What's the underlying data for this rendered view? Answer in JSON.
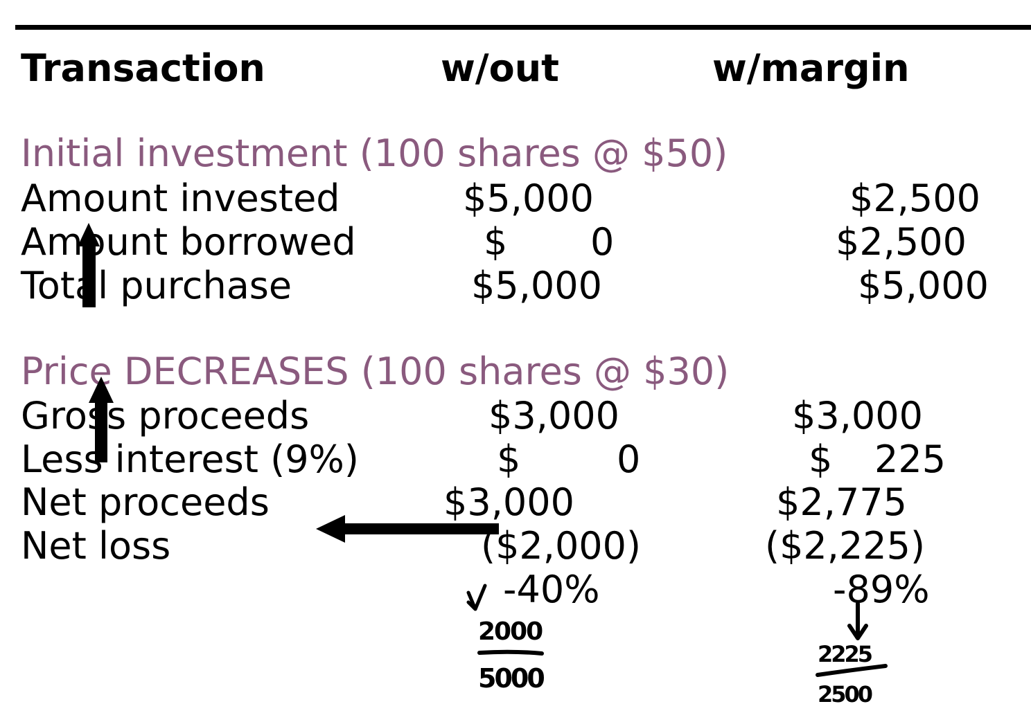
{
  "headers": {
    "transaction": "Transaction",
    "without": "w/out",
    "with_margin": "w/margin"
  },
  "section1": {
    "title": "Initial investment (100 shares @ $50)",
    "rows": [
      {
        "label": "Amount invested",
        "without": "$5,000",
        "with_margin": "$2,500"
      },
      {
        "label": "Amount borrowed",
        "without_symbol": "$",
        "without_value": "0",
        "with_margin": "$2,500"
      },
      {
        "label": "Total purchase",
        "without": "$5,000",
        "with_margin": "$5,000"
      }
    ]
  },
  "section2": {
    "title": "Price DECREASES (100 shares @ $30)",
    "rows": [
      {
        "label": "Gross proceeds",
        "without": "$3,000",
        "with_margin": "$3,000"
      },
      {
        "label": "Less interest (9%)",
        "without_symbol": "$",
        "without_value": "0",
        "with_margin_symbol": "$",
        "with_margin_value": "225"
      },
      {
        "label": "Net proceeds",
        "without": "$3,000",
        "with_margin": "$2,775"
      },
      {
        "label": "Net loss",
        "without": "($2,000)",
        "with_margin": "($2,225)"
      }
    ],
    "pct_without": "-40%",
    "pct_with_margin": "-89%"
  },
  "handwriting": {
    "left_numerator": "2000",
    "left_denominator": "5000",
    "right_numerator": "2225",
    "right_denominator": "2500"
  },
  "colors": {
    "section_title": "#8a5a7e",
    "text": "#000000",
    "background": "#ffffff"
  }
}
